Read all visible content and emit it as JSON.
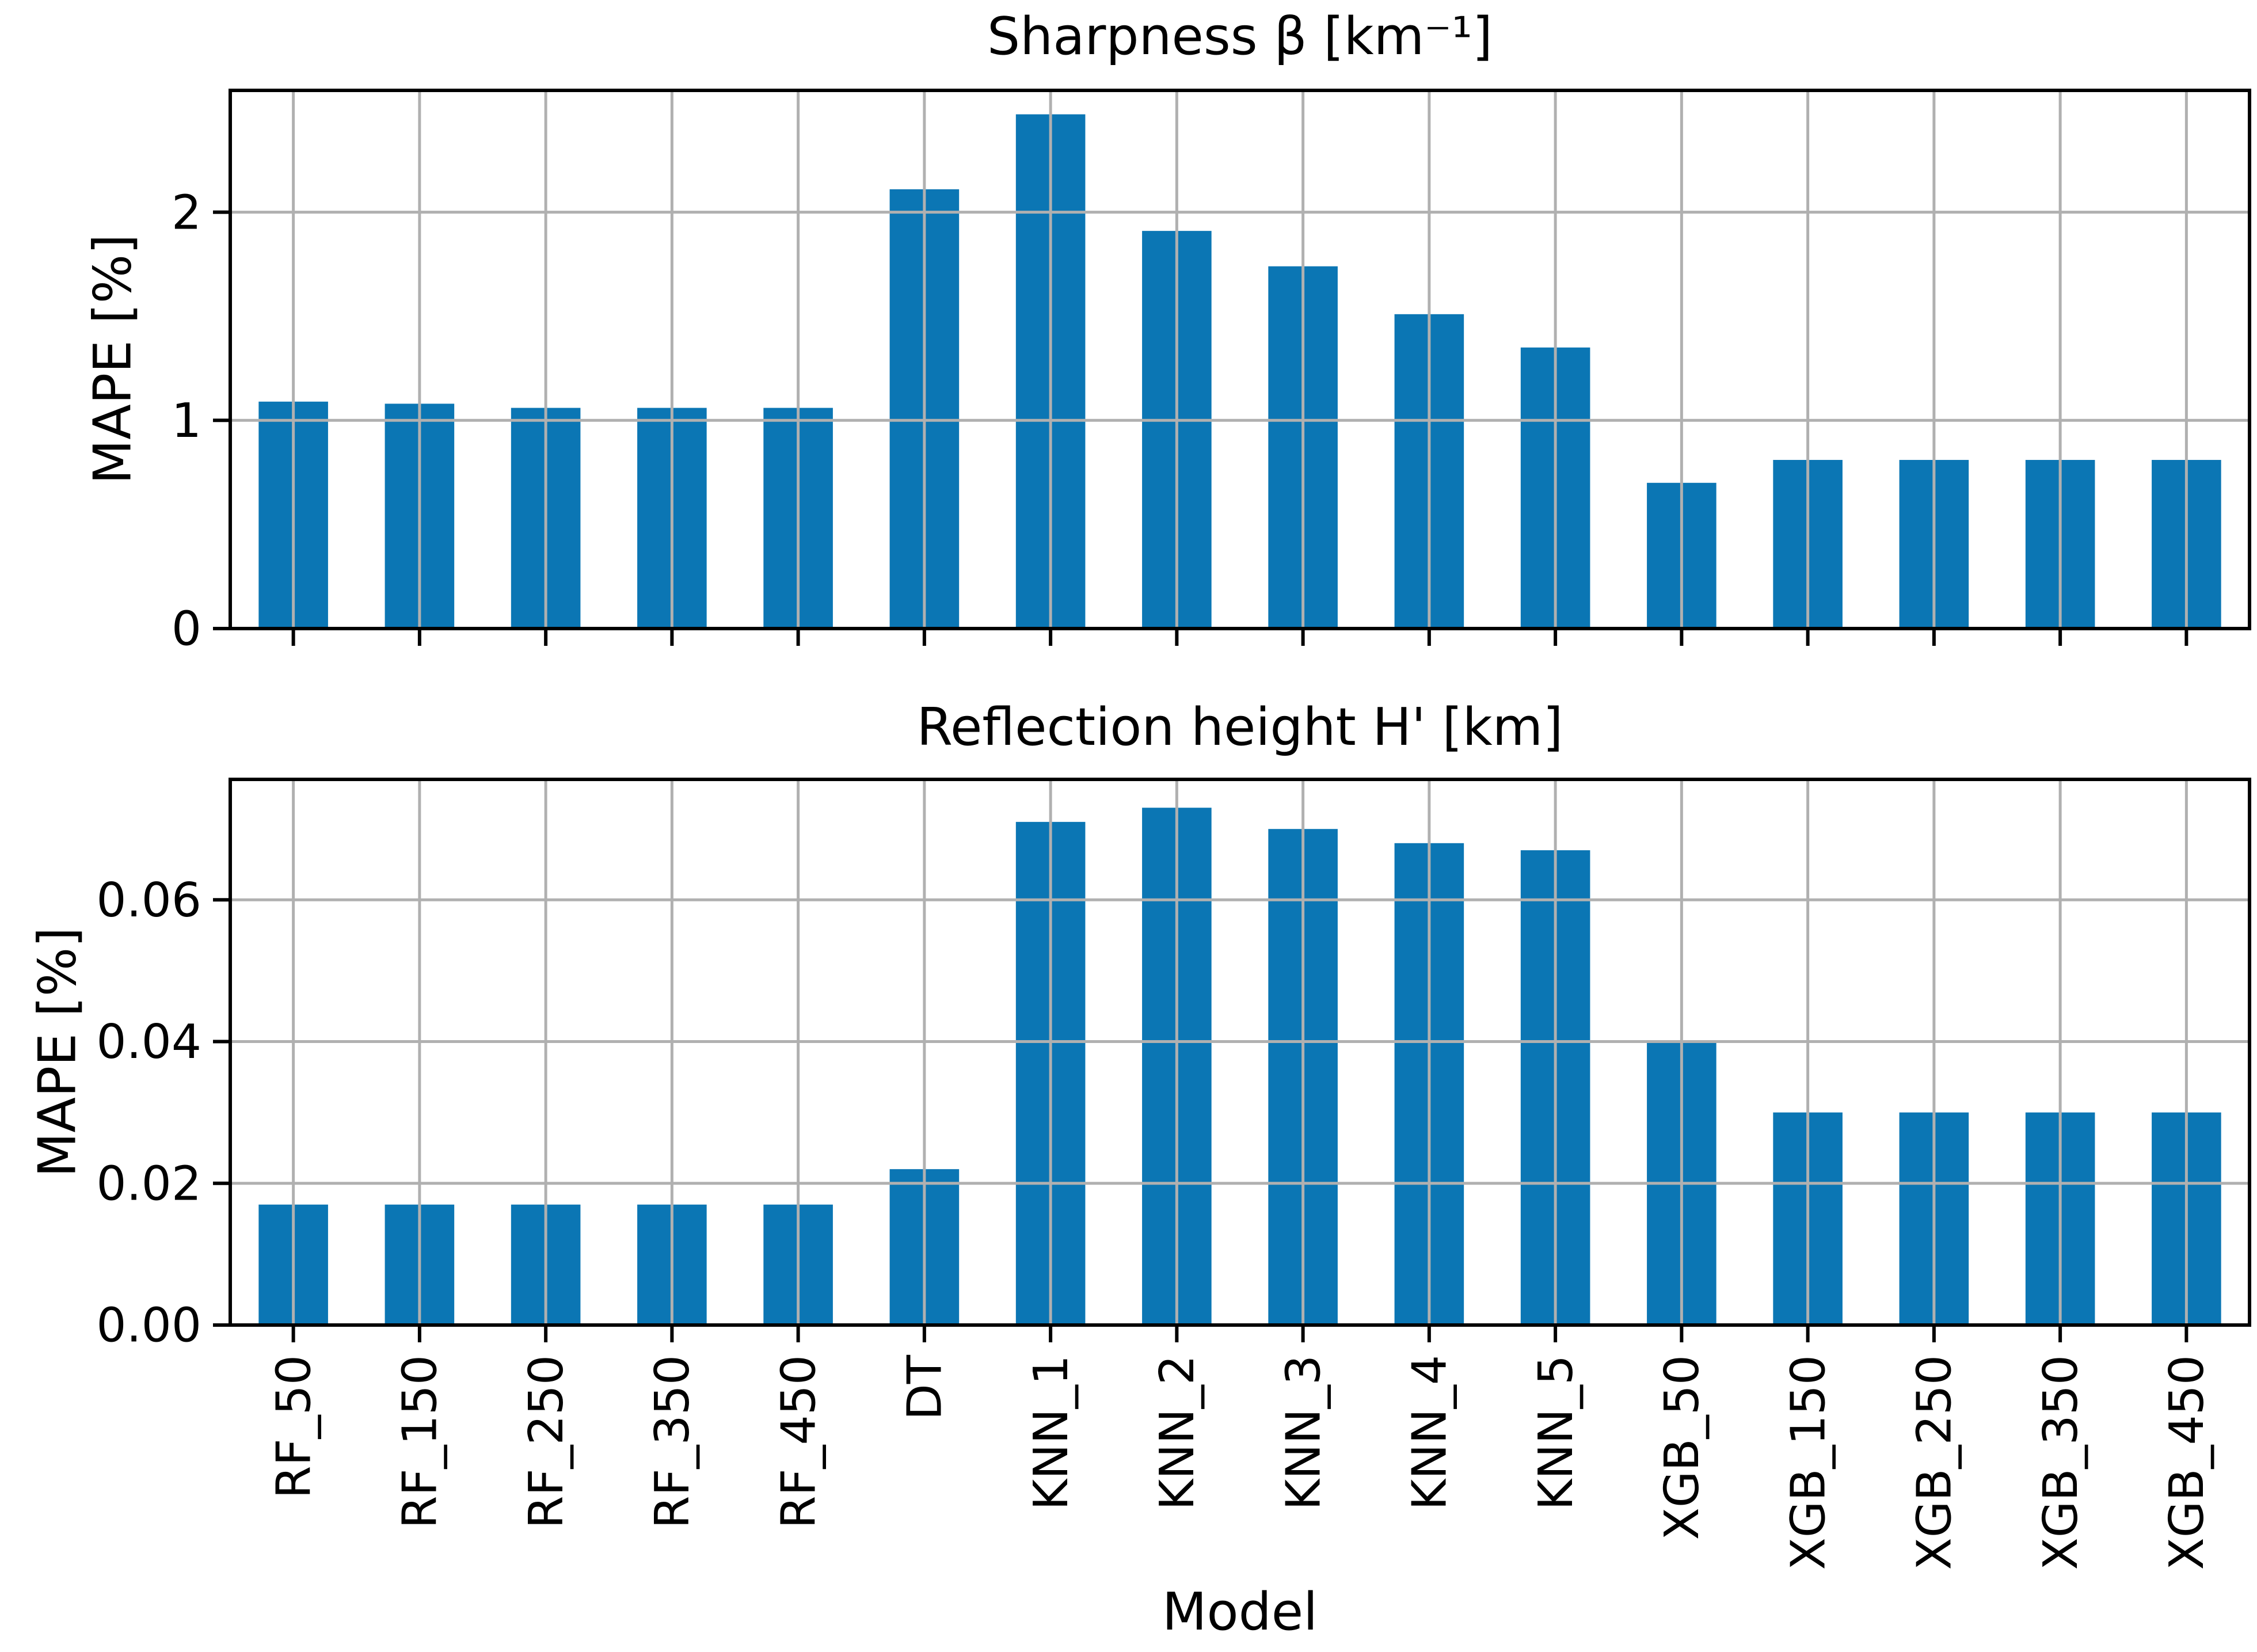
{
  "figure": {
    "xlabel": "Model"
  },
  "colors": {
    "bar": "#0b76b4",
    "grid": "#b0b0b0",
    "spine": "#000000",
    "text": "#000000",
    "background": "#ffffff"
  },
  "chart_data": [
    {
      "type": "bar",
      "title": "Sharpness β [km⁻¹]",
      "ylabel": "MAPE [%]",
      "xlabel": "",
      "categories": [
        "RF_50",
        "RF_150",
        "RF_250",
        "RF_350",
        "RF_450",
        "DT",
        "KNN_1",
        "KNN_2",
        "KNN_3",
        "KNN_4",
        "KNN_5",
        "XGB_50",
        "XGB_150",
        "XGB_250",
        "XGB_350",
        "XGB_450"
      ],
      "values": [
        1.09,
        1.08,
        1.06,
        1.06,
        1.06,
        2.11,
        2.47,
        1.91,
        1.74,
        1.51,
        1.35,
        0.7,
        0.81,
        0.81,
        0.81,
        0.81
      ],
      "ylim": [
        0,
        2.585
      ],
      "yticks": [
        {
          "value": 0,
          "label": "0"
        },
        {
          "value": 1,
          "label": "1"
        },
        {
          "value": 2,
          "label": "2"
        }
      ],
      "grid": true,
      "legend": "none",
      "show_x_tick_labels": false
    },
    {
      "type": "bar",
      "title": "Reflection height H' [km]",
      "ylabel": "MAPE [%]",
      "xlabel": "Model",
      "categories": [
        "RF_50",
        "RF_150",
        "RF_250",
        "RF_350",
        "RF_450",
        "DT",
        "KNN_1",
        "KNN_2",
        "KNN_3",
        "KNN_4",
        "KNN_5",
        "XGB_50",
        "XGB_150",
        "XGB_250",
        "XGB_350",
        "XGB_450"
      ],
      "values": [
        0.017,
        0.017,
        0.017,
        0.017,
        0.017,
        0.022,
        0.071,
        0.073,
        0.07,
        0.068,
        0.067,
        0.04,
        0.03,
        0.03,
        0.03,
        0.03
      ],
      "ylim": [
        0,
        0.077
      ],
      "yticks": [
        {
          "value": 0,
          "label": "0.00"
        },
        {
          "value": 0.02,
          "label": "0.02"
        },
        {
          "value": 0.04,
          "label": "0.04"
        },
        {
          "value": 0.06,
          "label": "0.06"
        }
      ],
      "grid": true,
      "legend": "none",
      "show_x_tick_labels": true
    }
  ]
}
